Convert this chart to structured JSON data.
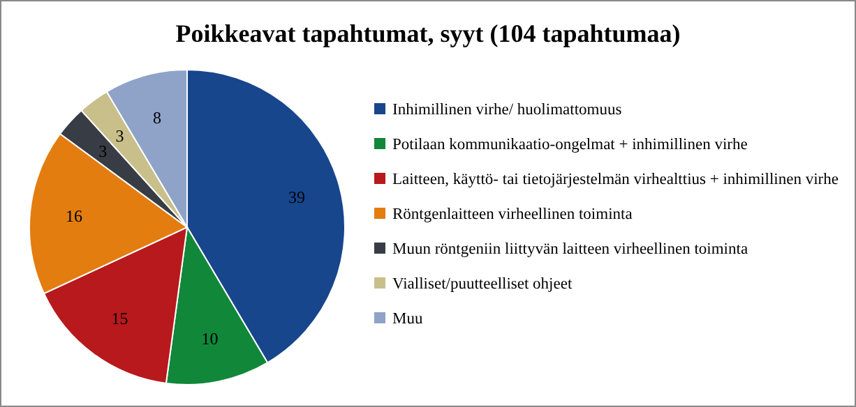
{
  "chart_data": {
    "type": "pie",
    "title": "Poikkeavat tapahtumat, syyt (104 tapahtumaa)",
    "categories": [
      "Inhimillinen virhe/ huolimattomuus",
      "Potilaan kommunikaatio-ongelmat  + inhimillinen virhe",
      "Laitteen, käyttö- tai tietojärjestelmän virhealttius + inhimillinen virhe",
      "Röntgenlaitteen  virheellinen toiminta",
      "Muun röntgeniin liittyvän laitteen virheellinen toiminta",
      "Vialliset/puutteelliset ohjeet",
      "Muu"
    ],
    "values": [
      39,
      10,
      15,
      16,
      3,
      3,
      8
    ],
    "colors": [
      "#17468c",
      "#11873a",
      "#b8191c",
      "#e37d10",
      "#383d45",
      "#c9bf8a",
      "#8fa3c9"
    ],
    "data_labels": true,
    "legend": "right"
  }
}
